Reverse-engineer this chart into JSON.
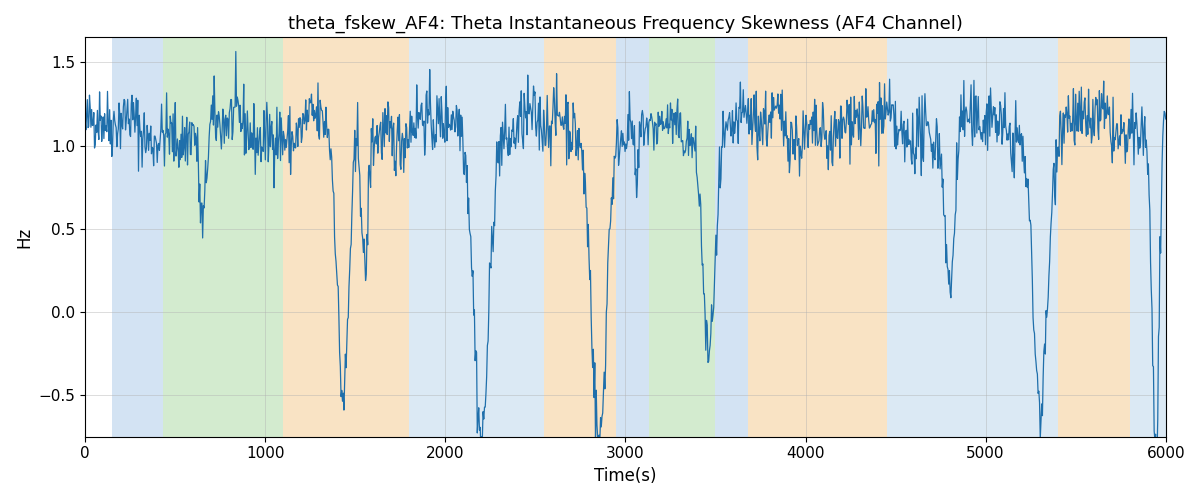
{
  "title": "theta_fskew_AF4: Theta Instantaneous Frequency Skewness (AF4 Channel)",
  "xlabel": "Time(s)",
  "ylabel": "Hz",
  "xlim": [
    0,
    6000
  ],
  "ylim": [
    -0.75,
    1.65
  ],
  "line_color": "#1f6fab",
  "line_width": 0.9,
  "background_bands": [
    {
      "xmin": 0,
      "xmax": 150,
      "color": "#ffffff",
      "alpha": 0.0
    },
    {
      "xmin": 150,
      "xmax": 430,
      "color": "#a8c8e8",
      "alpha": 0.5
    },
    {
      "xmin": 430,
      "xmax": 1100,
      "color": "#a8d8a0",
      "alpha": 0.5
    },
    {
      "xmin": 1100,
      "xmax": 1800,
      "color": "#f5c98a",
      "alpha": 0.5
    },
    {
      "xmin": 1800,
      "xmax": 2550,
      "color": "#b8d4ea",
      "alpha": 0.5
    },
    {
      "xmin": 2550,
      "xmax": 2950,
      "color": "#f5c98a",
      "alpha": 0.5
    },
    {
      "xmin": 2950,
      "xmax": 3130,
      "color": "#a8c8e8",
      "alpha": 0.5
    },
    {
      "xmin": 3130,
      "xmax": 3500,
      "color": "#a8d8a0",
      "alpha": 0.5
    },
    {
      "xmin": 3500,
      "xmax": 3680,
      "color": "#a8c8e8",
      "alpha": 0.5
    },
    {
      "xmin": 3680,
      "xmax": 4450,
      "color": "#f5c98a",
      "alpha": 0.5
    },
    {
      "xmin": 4450,
      "xmax": 5050,
      "color": "#b8d4ea",
      "alpha": 0.5
    },
    {
      "xmin": 5050,
      "xmax": 5400,
      "color": "#b8d4ea",
      "alpha": 0.5
    },
    {
      "xmin": 5400,
      "xmax": 5800,
      "color": "#f5c98a",
      "alpha": 0.5
    },
    {
      "xmin": 5800,
      "xmax": 6000,
      "color": "#b8d4ea",
      "alpha": 0.5
    }
  ],
  "grid_color": "#b0b0b0",
  "grid_alpha": 0.6,
  "title_fontsize": 13,
  "label_fontsize": 12,
  "tick_fontsize": 11,
  "seed": 42,
  "n_points": 1500,
  "base_level": 1.1,
  "noise_std": 0.1
}
